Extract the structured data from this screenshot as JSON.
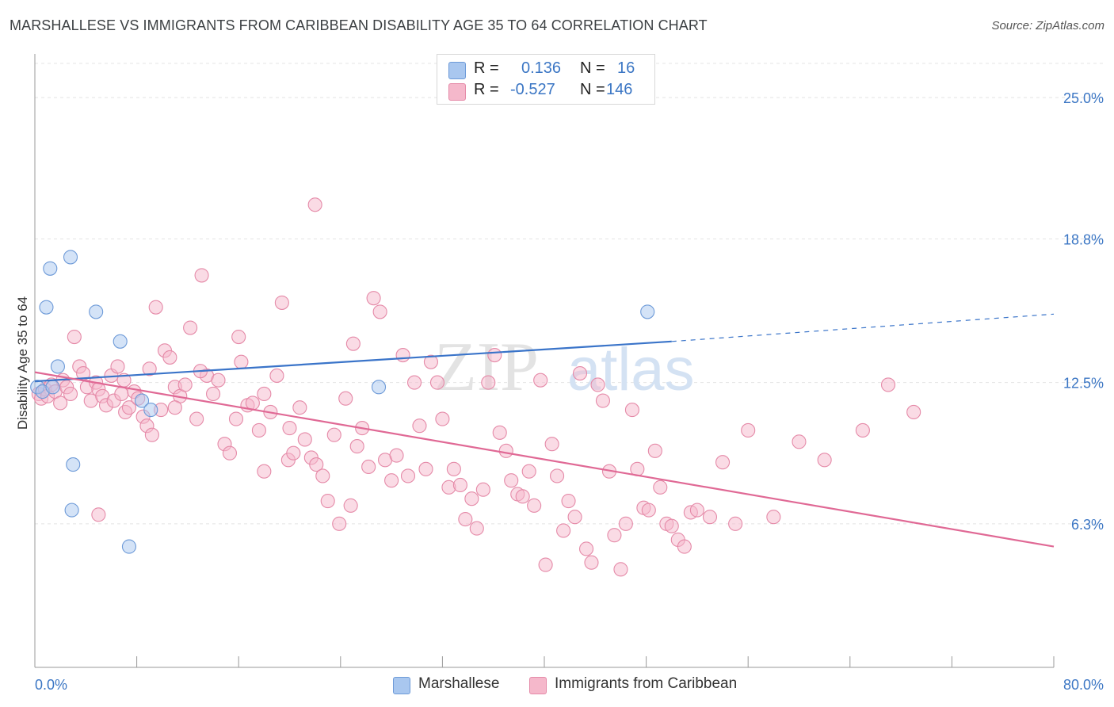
{
  "title": "MARSHALLESE VS IMMIGRANTS FROM CARIBBEAN DISABILITY AGE 35 TO 64 CORRELATION CHART",
  "source": "Source: ZipAtlas.com",
  "watermark": {
    "zip": "ZIP",
    "atlas": "atlas"
  },
  "legend": {
    "r_label": "R =",
    "n_label": "N =",
    "rows": [
      {
        "r": "0.136",
        "n": "16",
        "color": "#a9c7ef"
      },
      {
        "r": "-0.527",
        "n": "146",
        "color": "#f5b8cb"
      }
    ]
  },
  "bottom_legend": [
    "Marshallese",
    "Immigrants from Caribbean"
  ],
  "colors": {
    "blue_fill": "#a9c7ef",
    "blue_stroke": "#6d9ad8",
    "blue_line": "#3a74c9",
    "pink_fill": "#f5b8cb",
    "pink_stroke": "#e58aa8",
    "pink_line": "#e06995",
    "axis_text": "#3b76c4",
    "grid": "#e4e4e4"
  },
  "chart_data": {
    "type": "scatter",
    "title": "MARSHALLESE VS IMMIGRANTS FROM CARIBBEAN DISABILITY AGE 35 TO 64 CORRELATION CHART",
    "xlabel": "",
    "ylabel": "Disability Age 35 to 64",
    "xlim": [
      0,
      80
    ],
    "ylim": [
      0,
      26.5
    ],
    "x_tick_labels": [
      "0.0%",
      "80.0%"
    ],
    "y_ticks": [
      6.3,
      12.5,
      18.8,
      25.0
    ],
    "y_tick_labels": [
      "6.3%",
      "12.5%",
      "18.8%",
      "25.0%"
    ],
    "grid": true,
    "legend_position": "top-center",
    "series": [
      {
        "name": "Marshallese",
        "color": "#a9c7ef",
        "x": [
          0.2,
          0.6,
          2.8,
          1.2,
          0.9,
          4.8,
          6.7,
          1.8,
          3.0,
          2.9,
          1.4,
          8.4,
          9.1,
          27.0,
          48.1,
          7.4
        ],
        "y": [
          12.3,
          12.1,
          18.0,
          17.5,
          15.8,
          15.6,
          14.3,
          13.2,
          8.9,
          6.9,
          12.3,
          11.7,
          11.3,
          12.3,
          15.6,
          5.3
        ],
        "trend": {
          "x": [
            0,
            50
          ],
          "y": [
            12.55,
            14.3
          ],
          "dashed_to": [
            80,
            15.5
          ]
        }
      },
      {
        "name": "Immigrants from Caribbean",
        "color": "#f5b8cb",
        "x": [
          0.3,
          0.5,
          0.8,
          1.0,
          1.3,
          1.6,
          2.0,
          2.2,
          2.5,
          2.8,
          3.1,
          3.5,
          3.8,
          4.1,
          4.4,
          4.8,
          5.0,
          5.3,
          5.6,
          6.0,
          6.2,
          6.5,
          6.8,
          7.1,
          7.4,
          7.8,
          8.1,
          8.5,
          8.8,
          9.2,
          9.5,
          9.9,
          10.2,
          10.6,
          11.0,
          11.4,
          11.8,
          12.2,
          12.7,
          13.1,
          13.5,
          14.0,
          14.4,
          14.9,
          15.3,
          15.8,
          16.2,
          16.7,
          17.1,
          17.6,
          18.0,
          18.5,
          19.0,
          19.4,
          19.9,
          20.3,
          20.8,
          21.2,
          21.7,
          22.1,
          22.6,
          23.0,
          23.5,
          23.9,
          24.4,
          24.8,
          25.3,
          25.7,
          26.2,
          26.6,
          27.1,
          27.5,
          28.0,
          28.4,
          28.9,
          29.3,
          29.8,
          30.2,
          30.7,
          31.1,
          31.6,
          32.0,
          32.5,
          32.9,
          33.4,
          33.8,
          34.3,
          34.7,
          35.2,
          35.6,
          36.1,
          36.5,
          37.0,
          37.4,
          37.9,
          38.3,
          38.8,
          39.2,
          39.7,
          40.1,
          40.6,
          41.0,
          41.5,
          41.9,
          42.4,
          42.8,
          43.3,
          43.7,
          44.2,
          44.6,
          45.1,
          45.5,
          46.0,
          46.4,
          46.9,
          47.3,
          47.8,
          48.2,
          48.7,
          49.1,
          49.6,
          50.0,
          50.5,
          51.0,
          51.5,
          52.0,
          53.0,
          54.0,
          55.0,
          56.0,
          58.0,
          60.0,
          62.0,
          65.0,
          67.0,
          69.0,
          22.0,
          25.0,
          13.0,
          16.0,
          18.0,
          20.0,
          11.0,
          9.0,
          7.0,
          5.0
        ],
        "y": [
          12.0,
          11.8,
          12.2,
          11.9,
          12.4,
          12.1,
          11.6,
          12.6,
          12.3,
          12.0,
          14.5,
          13.2,
          12.9,
          12.3,
          11.7,
          12.5,
          12.2,
          11.9,
          11.5,
          12.8,
          11.7,
          13.2,
          12.0,
          11.2,
          11.4,
          12.1,
          11.8,
          11.0,
          10.6,
          10.2,
          15.8,
          11.3,
          13.9,
          13.6,
          12.3,
          11.9,
          12.4,
          14.9,
          10.9,
          17.2,
          12.8,
          12.0,
          12.6,
          9.8,
          9.4,
          10.9,
          13.4,
          11.5,
          11.6,
          10.4,
          8.6,
          11.2,
          12.8,
          16.0,
          9.1,
          9.4,
          11.4,
          10.0,
          9.2,
          8.9,
          8.4,
          7.3,
          10.2,
          6.3,
          11.8,
          7.1,
          9.7,
          10.5,
          8.8,
          16.2,
          15.6,
          9.1,
          8.2,
          9.3,
          13.7,
          8.4,
          12.5,
          10.6,
          8.7,
          13.4,
          12.5,
          10.9,
          7.9,
          8.7,
          8.0,
          6.5,
          7.4,
          6.1,
          7.8,
          12.5,
          13.7,
          10.3,
          9.5,
          8.2,
          7.6,
          7.5,
          8.6,
          7.1,
          12.6,
          4.5,
          9.8,
          8.4,
          6.0,
          7.3,
          6.6,
          12.9,
          5.2,
          4.6,
          12.4,
          11.7,
          8.6,
          5.8,
          4.3,
          6.3,
          11.3,
          8.7,
          7.0,
          6.9,
          9.5,
          7.9,
          6.3,
          6.2,
          5.6,
          5.3,
          6.8,
          6.9,
          6.6,
          9.0,
          6.3,
          10.4,
          6.6,
          9.9,
          9.1,
          10.4,
          12.4,
          11.2,
          20.3,
          14.2,
          13.0,
          14.5,
          12.0,
          10.5,
          11.4,
          13.1,
          12.6,
          6.7
        ],
        "trend": {
          "x": [
            0,
            80
          ],
          "y": [
            12.95,
            5.3
          ]
        }
      }
    ]
  }
}
